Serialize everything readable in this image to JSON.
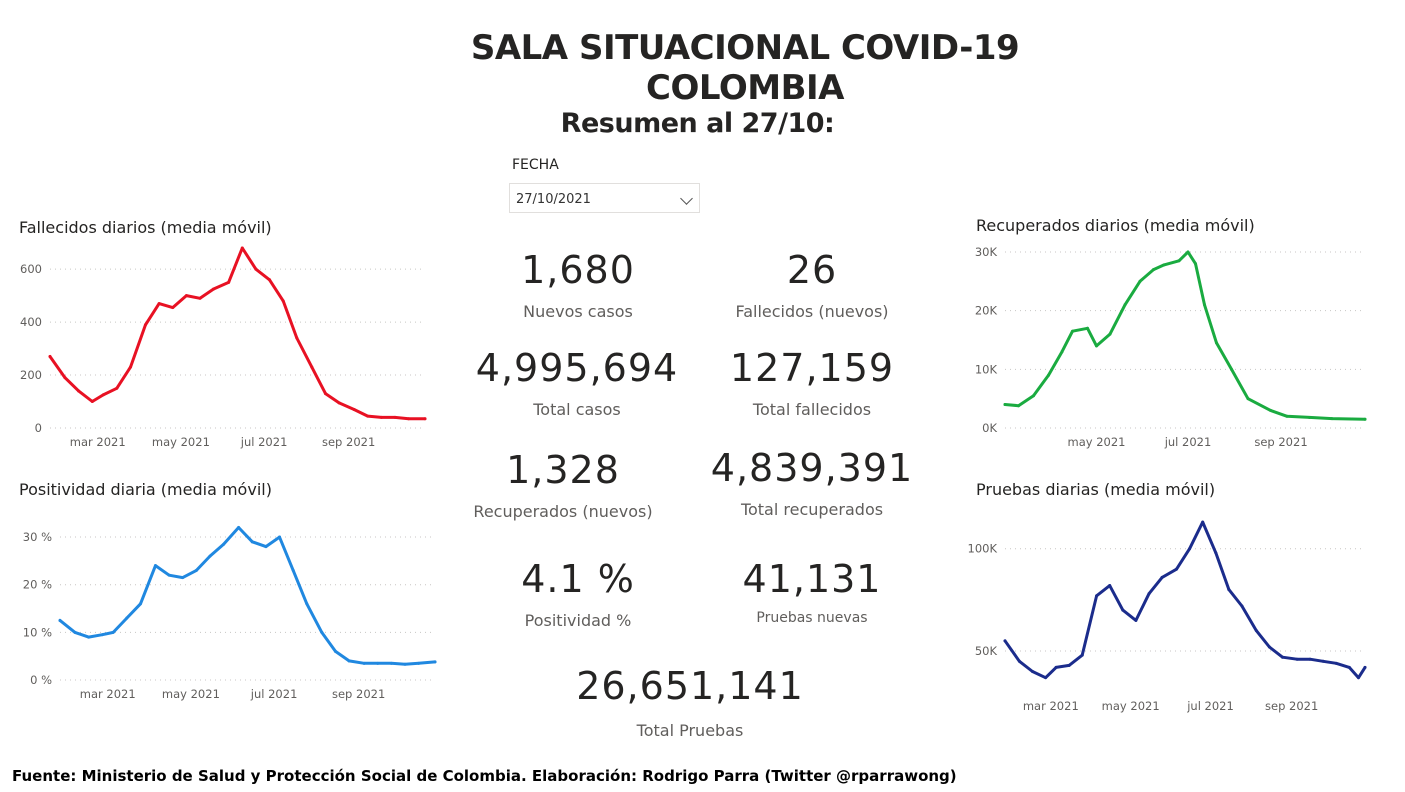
{
  "header": {
    "title": "SALA SITUACIONAL COVID-19 COLOMBIA",
    "subtitle": "Resumen al 27/10:"
  },
  "slicer": {
    "label": "FECHA",
    "value": "27/10/2021"
  },
  "cards": [
    {
      "value": "1,680",
      "label": "Nuevos casos"
    },
    {
      "value": "26",
      "label": "Fallecidos (nuevos)"
    },
    {
      "value": "4,995,694",
      "label": "Total casos"
    },
    {
      "value": "127,159",
      "label": "Total fallecidos"
    },
    {
      "value": "1,328",
      "label": "Recuperados (nuevos)"
    },
    {
      "value": "4,839,391",
      "label": "Total recuperados"
    },
    {
      "value": "4.1 %",
      "label": "Positividad %"
    },
    {
      "value": "41,131",
      "label": "Pruebas nuevas"
    },
    {
      "value": "26,651,141",
      "label": "Total Pruebas"
    }
  ],
  "footer": "Fuente: Ministerio de Salud y Protección Social de Colombia. Elaboración: Rodrigo Parra (Twitter @rparrawong)",
  "chart_data": [
    {
      "type": "line",
      "title": "Fallecidos diarios (media móvil)",
      "color": "#e81123",
      "x_start": "2021-01-25",
      "x_end": "2021-10-27",
      "xticks": [
        {
          "date": "2021-03-01",
          "label": "mar 2021"
        },
        {
          "date": "2021-05-01",
          "label": "may 2021"
        },
        {
          "date": "2021-07-01",
          "label": "jul 2021"
        },
        {
          "date": "2021-09-01",
          "label": "sep 2021"
        }
      ],
      "ylim": [
        0,
        680
      ],
      "yticks": [
        {
          "v": 0,
          "label": "0"
        },
        {
          "v": 200,
          "label": "200"
        },
        {
          "v": 400,
          "label": "400"
        },
        {
          "v": 600,
          "label": "600"
        }
      ],
      "x": [
        "2021-01-25",
        "2021-02-05",
        "2021-02-15",
        "2021-02-25",
        "2021-03-05",
        "2021-03-15",
        "2021-03-25",
        "2021-04-05",
        "2021-04-15",
        "2021-04-25",
        "2021-05-05",
        "2021-05-15",
        "2021-05-25",
        "2021-06-05",
        "2021-06-15",
        "2021-06-25",
        "2021-07-05",
        "2021-07-15",
        "2021-07-25",
        "2021-08-05",
        "2021-08-15",
        "2021-08-25",
        "2021-09-05",
        "2021-09-15",
        "2021-09-25",
        "2021-10-05",
        "2021-10-15",
        "2021-10-27"
      ],
      "y": [
        270,
        190,
        140,
        100,
        125,
        150,
        230,
        390,
        470,
        455,
        500,
        490,
        525,
        550,
        680,
        600,
        560,
        480,
        340,
        230,
        130,
        95,
        70,
        45,
        40,
        40,
        35,
        35
      ]
    },
    {
      "type": "line",
      "title": "Positividad diaria (media móvil)",
      "color": "#2088e0",
      "x_start": "2021-01-25",
      "x_end": "2021-10-27",
      "xticks": [
        {
          "date": "2021-03-01",
          "label": "mar 2021"
        },
        {
          "date": "2021-05-01",
          "label": "may 2021"
        },
        {
          "date": "2021-07-01",
          "label": "jul 2021"
        },
        {
          "date": "2021-09-01",
          "label": "sep 2021"
        }
      ],
      "ylim": [
        0,
        34
      ],
      "yticks": [
        {
          "v": 0,
          "label": "0 %"
        },
        {
          "v": 10,
          "label": "10 %"
        },
        {
          "v": 20,
          "label": "20 %"
        },
        {
          "v": 30,
          "label": "30 %"
        }
      ],
      "x": [
        "2021-01-25",
        "2021-02-05",
        "2021-02-15",
        "2021-02-25",
        "2021-03-05",
        "2021-03-15",
        "2021-03-25",
        "2021-04-05",
        "2021-04-15",
        "2021-04-25",
        "2021-05-05",
        "2021-05-15",
        "2021-05-25",
        "2021-06-05",
        "2021-06-15",
        "2021-06-25",
        "2021-07-05",
        "2021-07-15",
        "2021-07-25",
        "2021-08-05",
        "2021-08-15",
        "2021-08-25",
        "2021-09-05",
        "2021-09-15",
        "2021-09-25",
        "2021-10-05",
        "2021-10-15",
        "2021-10-27"
      ],
      "y": [
        12.5,
        10,
        9,
        9.5,
        10,
        13,
        16,
        24,
        22,
        21.5,
        23,
        26,
        28.5,
        32,
        29,
        28,
        30,
        23,
        16,
        10,
        6,
        4,
        3.5,
        3.5,
        3.5,
        3.3,
        3.5,
        3.8
      ]
    },
    {
      "type": "line",
      "title": "Recuperados diarios (media móvil)",
      "color": "#1aab40",
      "x_start": "2021-03-01",
      "x_end": "2021-10-27",
      "xticks": [
        {
          "date": "2021-05-01",
          "label": "may 2021"
        },
        {
          "date": "2021-07-01",
          "label": "jul 2021"
        },
        {
          "date": "2021-09-01",
          "label": "sep 2021"
        }
      ],
      "ylim": [
        0,
        30000
      ],
      "yticks": [
        {
          "v": 0,
          "label": "0K"
        },
        {
          "v": 10000,
          "label": "10K"
        },
        {
          "v": 20000,
          "label": "20K"
        },
        {
          "v": 30000,
          "label": "30K"
        }
      ],
      "x": [
        "2021-03-01",
        "2021-03-10",
        "2021-03-20",
        "2021-03-30",
        "2021-04-08",
        "2021-04-15",
        "2021-04-25",
        "2021-05-01",
        "2021-05-10",
        "2021-05-20",
        "2021-05-30",
        "2021-06-08",
        "2021-06-15",
        "2021-06-25",
        "2021-07-01",
        "2021-07-06",
        "2021-07-12",
        "2021-07-20",
        "2021-07-30",
        "2021-08-10",
        "2021-08-25",
        "2021-09-05",
        "2021-09-20",
        "2021-10-05",
        "2021-10-27"
      ],
      "y": [
        4000,
        3800,
        5500,
        9000,
        13000,
        16500,
        17000,
        14000,
        16000,
        21000,
        25000,
        27000,
        27800,
        28500,
        30000,
        28000,
        21000,
        14500,
        10000,
        5000,
        3000,
        2000,
        1800,
        1600,
        1500
      ]
    },
    {
      "type": "line",
      "title": "Pruebas diarias (media móvil)",
      "color": "#1b2c8c",
      "x_start": "2021-01-25",
      "x_end": "2021-10-27",
      "xticks": [
        {
          "date": "2021-03-01",
          "label": "mar 2021"
        },
        {
          "date": "2021-05-01",
          "label": "may 2021"
        },
        {
          "date": "2021-07-01",
          "label": "jul 2021"
        },
        {
          "date": "2021-09-01",
          "label": "sep 2021"
        }
      ],
      "ylim": [
        30000,
        115000
      ],
      "yticks": [
        {
          "v": 50000,
          "label": "50K"
        },
        {
          "v": 100000,
          "label": "100K"
        }
      ],
      "x": [
        "2021-01-25",
        "2021-02-05",
        "2021-02-15",
        "2021-02-25",
        "2021-03-05",
        "2021-03-15",
        "2021-03-25",
        "2021-04-05",
        "2021-04-15",
        "2021-04-25",
        "2021-05-05",
        "2021-05-15",
        "2021-05-25",
        "2021-06-05",
        "2021-06-15",
        "2021-06-25",
        "2021-07-05",
        "2021-07-15",
        "2021-07-25",
        "2021-08-05",
        "2021-08-15",
        "2021-08-25",
        "2021-09-05",
        "2021-09-15",
        "2021-09-25",
        "2021-10-05",
        "2021-10-15",
        "2021-10-22",
        "2021-10-27"
      ],
      "y": [
        55000,
        45000,
        40000,
        37000,
        42000,
        43000,
        48000,
        77000,
        82000,
        70000,
        65000,
        78000,
        86000,
        90000,
        100000,
        113000,
        98000,
        80000,
        72000,
        60000,
        52000,
        47000,
        46000,
        46000,
        45000,
        44000,
        42000,
        37000,
        42000
      ]
    }
  ]
}
